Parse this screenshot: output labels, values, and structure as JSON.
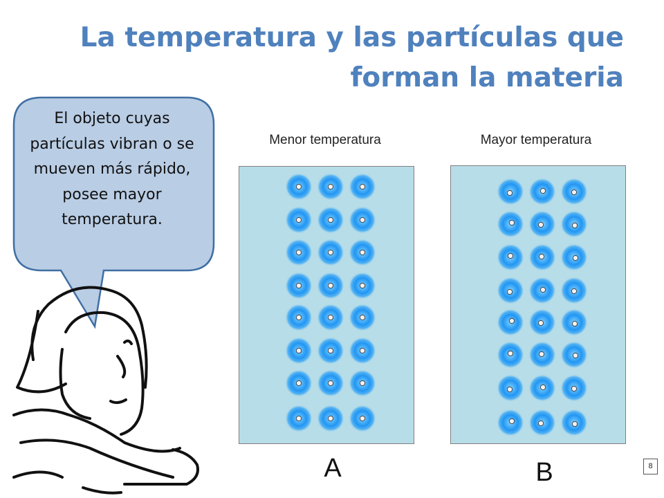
{
  "title": "La temperatura y las partículas que forman la materia",
  "bubble": {
    "text": "El objeto cuyas partículas vibran o se mueven más rápido, posee mayor temperatura."
  },
  "panels": [
    {
      "label": "Menor temperatura",
      "letter": "A"
    },
    {
      "label": "Mayor temperatura",
      "letter": "B"
    }
  ],
  "slide_number": "8",
  "colors": {
    "title": "#4f81bd",
    "bubble_fill": "#b9cde5",
    "bubble_border": "#3f6fa3",
    "box_fill": "#b7dde8",
    "particle": "#1e90ff"
  }
}
